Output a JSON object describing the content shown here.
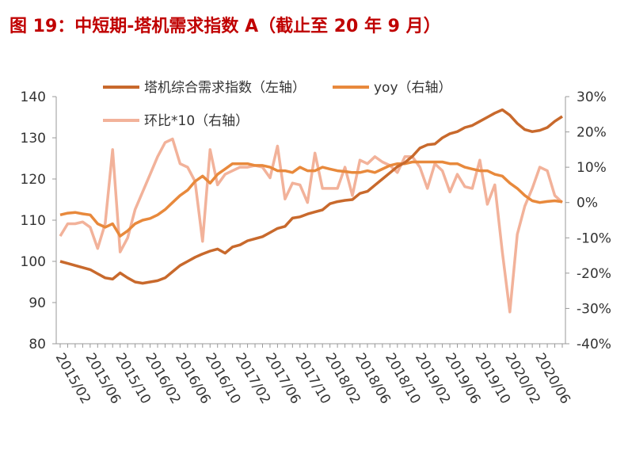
{
  "chart_data": {
    "type": "line",
    "title": "图 19：中短期-塔机需求指数 A（截止至 20 年 9 月）",
    "categories": [
      "2015/02",
      null,
      null,
      null,
      "2015/06",
      null,
      null,
      null,
      "2015/10",
      null,
      null,
      null,
      "2016/02",
      null,
      null,
      null,
      "2016/06",
      null,
      null,
      null,
      "2016/10",
      null,
      null,
      null,
      "2017/02",
      null,
      null,
      null,
      "2017/06",
      null,
      null,
      null,
      "2017/10",
      null,
      null,
      null,
      "2018/02",
      null,
      null,
      null,
      "2018/06",
      null,
      null,
      null,
      "2018/10",
      null,
      null,
      null,
      "2019/02",
      null,
      null,
      null,
      "2019/06",
      null,
      null,
      null,
      "2019/10",
      null,
      null,
      null,
      "2020/02",
      null,
      null,
      null,
      "2020/06",
      null,
      null,
      null
    ],
    "series": [
      {
        "name": "塔机综合需求指数（左轴）",
        "color": "#c8692c",
        "axis": "y",
        "values": [
          100,
          99.5,
          99,
          98.5,
          98,
          97,
          96,
          95.7,
          97.2,
          96,
          95,
          94.7,
          95,
          95.3,
          96,
          97.5,
          99,
          100,
          101,
          101.8,
          102.5,
          103,
          102,
          103.5,
          104,
          105,
          105.5,
          106,
          107,
          108,
          108.5,
          110.5,
          110.8,
          111.5,
          112,
          112.5,
          114,
          114.5,
          114.8,
          115,
          116.5,
          117,
          118.5,
          120,
          121.5,
          123,
          124,
          125.5,
          127.5,
          128.3,
          128.5,
          130,
          131,
          131.5,
          132.5,
          133,
          134,
          135,
          136,
          136.8,
          135.5,
          133.5,
          132,
          131.5,
          131.8,
          132.5,
          134,
          135.2
        ]
      },
      {
        "name": "yoy（右轴）",
        "color": "#e8893c",
        "axis": "y2",
        "values": [
          -3.5,
          -3,
          -2.8,
          -3.2,
          -3.5,
          -6,
          -7,
          -6,
          -9.5,
          -8,
          -6,
          -5,
          -4.5,
          -3.5,
          -2,
          0,
          2,
          3.5,
          6,
          7.5,
          5.5,
          8,
          9.5,
          11,
          11,
          11,
          10.5,
          10.5,
          10,
          9,
          9,
          8.5,
          10,
          9,
          9,
          10,
          9.5,
          9,
          8.8,
          8.5,
          8.5,
          9,
          8.5,
          9.5,
          10.5,
          11,
          11,
          11.5,
          11.5,
          11.5,
          11.5,
          11.5,
          11,
          11,
          10,
          9.5,
          9,
          9,
          8,
          7.5,
          5.5,
          4,
          2,
          0.5,
          0,
          0.3,
          0.5,
          0.2
        ]
      },
      {
        "name": "环比*10（右轴）",
        "color": "#f2b29a",
        "axis": "y2",
        "values": [
          -9.5,
          -6,
          -6,
          -5.5,
          -7,
          -13,
          -6,
          15,
          -14,
          -10,
          -2,
          3,
          8,
          13,
          17,
          18,
          11,
          10,
          6,
          -11,
          15,
          5,
          8,
          9,
          10,
          10,
          10.5,
          10,
          7,
          16,
          1,
          5.5,
          5,
          0,
          14,
          4,
          4,
          4,
          10,
          2,
          12,
          11,
          13,
          11.5,
          10.5,
          8.5,
          13,
          13,
          10,
          4,
          11,
          9,
          3,
          8,
          4.5,
          4,
          12,
          -0.5,
          5,
          -14,
          -31,
          -9,
          -1,
          4,
          10,
          9,
          2,
          0
        ]
      }
    ],
    "ylim": [
      80,
      140
    ],
    "yticks": [
      80,
      90,
      100,
      110,
      120,
      130,
      140
    ],
    "y2lim": [
      -40,
      30
    ],
    "y2ticks": [
      {
        "value": -40,
        "label": "-40%"
      },
      {
        "value": -30,
        "label": "-30%"
      },
      {
        "value": -20,
        "label": "-20%"
      },
      {
        "value": -10,
        "label": "-10%"
      },
      {
        "value": 0,
        "label": "0%"
      },
      {
        "value": 10,
        "label": "10%"
      },
      {
        "value": 20,
        "label": "20%"
      },
      {
        "value": 30,
        "label": "30%"
      }
    ]
  }
}
